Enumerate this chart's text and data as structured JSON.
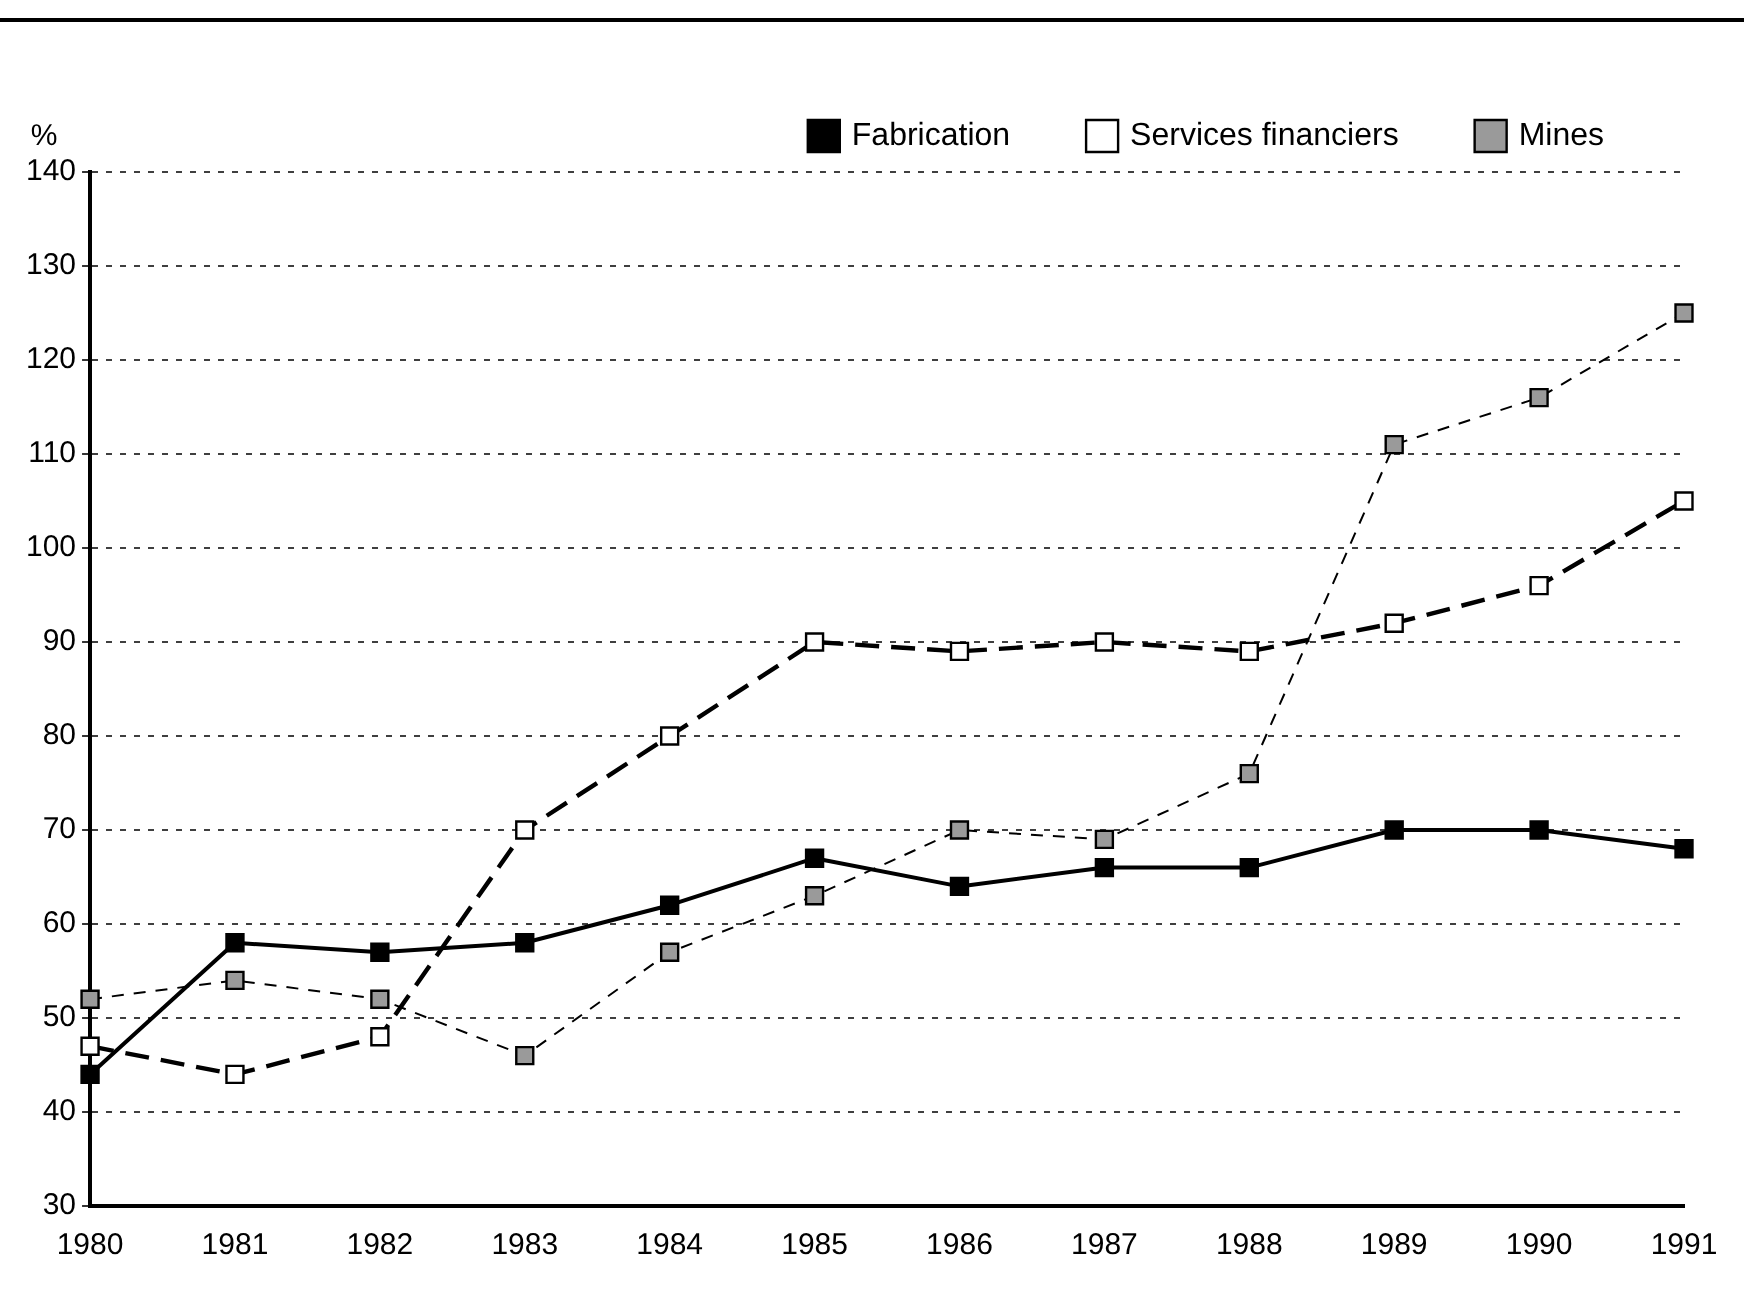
{
  "chart_data": {
    "type": "line",
    "ylabel": "%",
    "categories": [
      "1980",
      "1981",
      "1982",
      "1983",
      "1984",
      "1985",
      "1986",
      "1987",
      "1988",
      "1989",
      "1990",
      "1991"
    ],
    "series": [
      {
        "name": "Fabrication",
        "color": "#000000",
        "line_style": "solid",
        "values": [
          44,
          58,
          57,
          58,
          62,
          67,
          64,
          66,
          66,
          70,
          70,
          68
        ]
      },
      {
        "name": "Services financiers",
        "color": "#000000",
        "line_style": "dashed",
        "values": [
          47,
          44,
          48,
          70,
          80,
          90,
          89,
          90,
          89,
          92,
          96,
          105
        ]
      },
      {
        "name": "Mines",
        "color": "#000000",
        "line_style": "dotted",
        "values": [
          52,
          54,
          52,
          46,
          57,
          63,
          70,
          69,
          76,
          111,
          116,
          125
        ]
      }
    ],
    "ylim": [
      30,
      140
    ],
    "yticks": [
      30,
      40,
      50,
      60,
      70,
      80,
      90,
      100,
      110,
      120,
      130,
      140
    ],
    "grid": "y",
    "legend": "top",
    "marker": "square"
  }
}
